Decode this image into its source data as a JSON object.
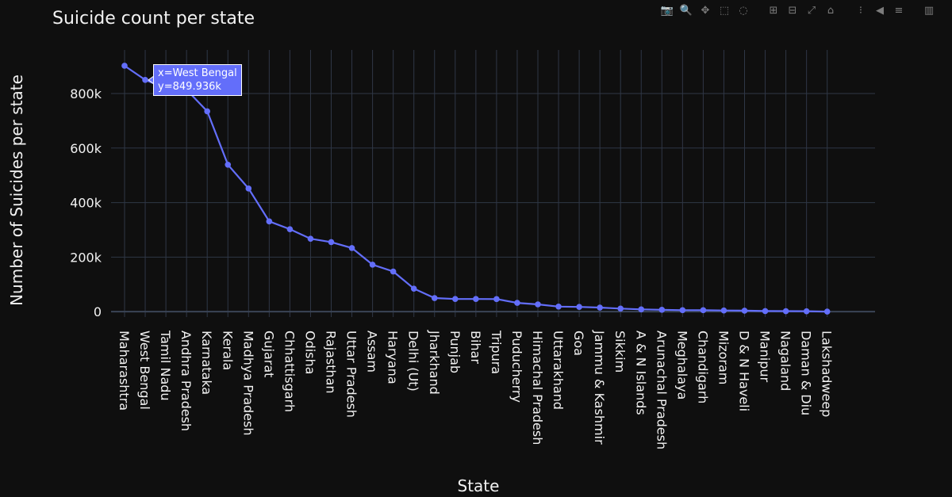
{
  "title": "Suicide count per state",
  "toolbar": [
    {
      "name": "camera-icon",
      "glyph": "📷"
    },
    {
      "name": "zoom-icon",
      "glyph": "🔍"
    },
    {
      "name": "pan-icon",
      "glyph": "✥"
    },
    {
      "name": "box-select-icon",
      "glyph": "⬚"
    },
    {
      "name": "lasso-select-icon",
      "glyph": "◌"
    },
    {
      "name": "zoom-in-icon",
      "glyph": "⊞"
    },
    {
      "name": "zoom-out-icon",
      "glyph": "⊟"
    },
    {
      "name": "autoscale-icon",
      "glyph": "⤢"
    },
    {
      "name": "reset-axes-icon",
      "glyph": "⌂"
    },
    {
      "name": "spike-lines-icon",
      "glyph": "⁝"
    },
    {
      "name": "hover-closest-icon",
      "glyph": "◀"
    },
    {
      "name": "hover-compare-icon",
      "glyph": "≡"
    },
    {
      "name": "plotly-logo-icon",
      "glyph": "▥"
    }
  ],
  "chart_data": {
    "type": "line",
    "xlabel": "State",
    "ylabel": "Number of Suicides per state",
    "ylim": [
      -20000,
      960000
    ],
    "yticks": [
      0,
      200000,
      400000,
      600000,
      800000
    ],
    "ytick_labels": [
      "0",
      "200k",
      "400k",
      "600k",
      "800k"
    ],
    "grid": true,
    "line_color": "#636efa",
    "categories": [
      "Maharashtra",
      "West Bengal",
      "Tamil Nadu",
      "Andhra Pradesh",
      "Karnataka",
      "Kerala",
      "Madhya Pradesh",
      "Gujarat",
      "Chhattisgarh",
      "Odisha",
      "Rajasthan",
      "Uttar Pradesh",
      "Assam",
      "Haryana",
      "Delhi (Ut)",
      "Jharkhand",
      "Punjab",
      "Bihar",
      "Tripura",
      "Puducherry",
      "Himachal Pradesh",
      "Uttarakhand",
      "Goa",
      "Jammu & Kashmir",
      "Sikkim",
      "A & N Islands",
      "Arunachal Pradesh",
      "Meghalaya",
      "Chandigarh",
      "Mizoram",
      "D & N Haveli",
      "Manipur",
      "Nagaland",
      "Daman & Diu",
      "Lakshadweep"
    ],
    "values": [
      901945,
      849936,
      818691,
      814059,
      734825,
      538946,
      451535,
      330858,
      302354,
      267234,
      255134,
      233352,
      172276,
      147176,
      84272,
      49720,
      46350,
      46214,
      45965,
      32144,
      26562,
      18496,
      17363,
      14821,
      11002,
      8109,
      6633,
      5415,
      5164,
      4154,
      3430,
      2102,
      1728,
      1391,
      50
    ],
    "hover": {
      "index": 1,
      "x_text": "x=West Bengal",
      "y_text": "y=849.936k"
    }
  }
}
